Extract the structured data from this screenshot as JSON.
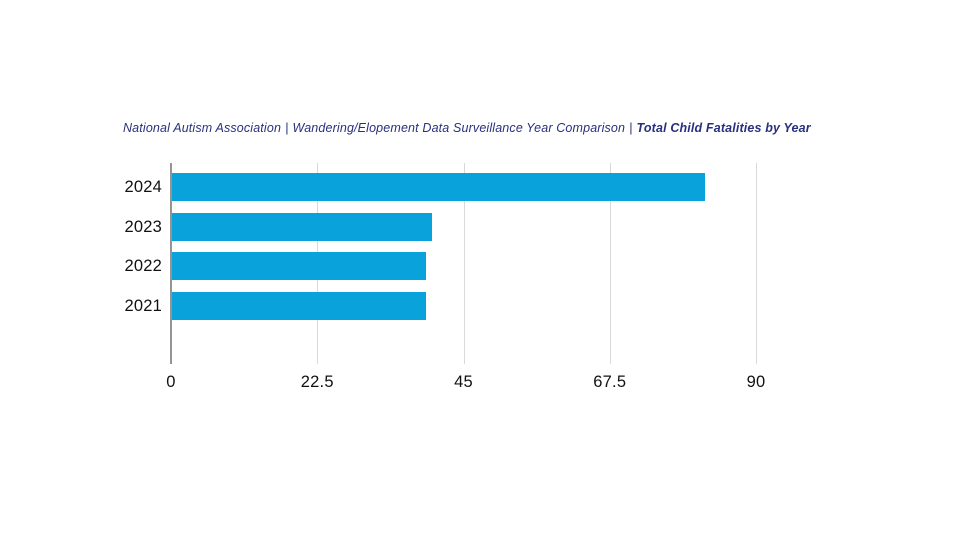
{
  "page": {
    "background_color": "#ffffff"
  },
  "title": {
    "segments": [
      {
        "text": "National Autism Association",
        "bold": false
      },
      {
        "text": "Wandering/Elopement Data Surveillance Year Comparison",
        "bold": false
      },
      {
        "text": "Total Child Fatalities by Year",
        "bold": true
      }
    ],
    "separator": "|",
    "color": "#28307f"
  },
  "chart_data": {
    "type": "bar",
    "orientation": "horizontal",
    "title": "National Autism Association | Wandering/Elopement Data Surveillance Year Comparison | Total Child Fatalities by Year",
    "categories": [
      "2024",
      "2023",
      "2022",
      "2021"
    ],
    "values": [
      82,
      40,
      39,
      39
    ],
    "xlabel": "",
    "ylabel": "",
    "xlim": [
      0,
      90
    ],
    "x_tick_labels": [
      "0",
      "22.5",
      "45",
      "67.5",
      "90"
    ],
    "x_tick_values": [
      0,
      22.5,
      45,
      67.5,
      90
    ],
    "grid": "vertical-gridlines-on",
    "legend_position": "none",
    "colors": {
      "bar": "#0aa2db",
      "axis_line": "#949494",
      "gridline": "#d9d9d9",
      "tick_label": "#111111"
    }
  }
}
